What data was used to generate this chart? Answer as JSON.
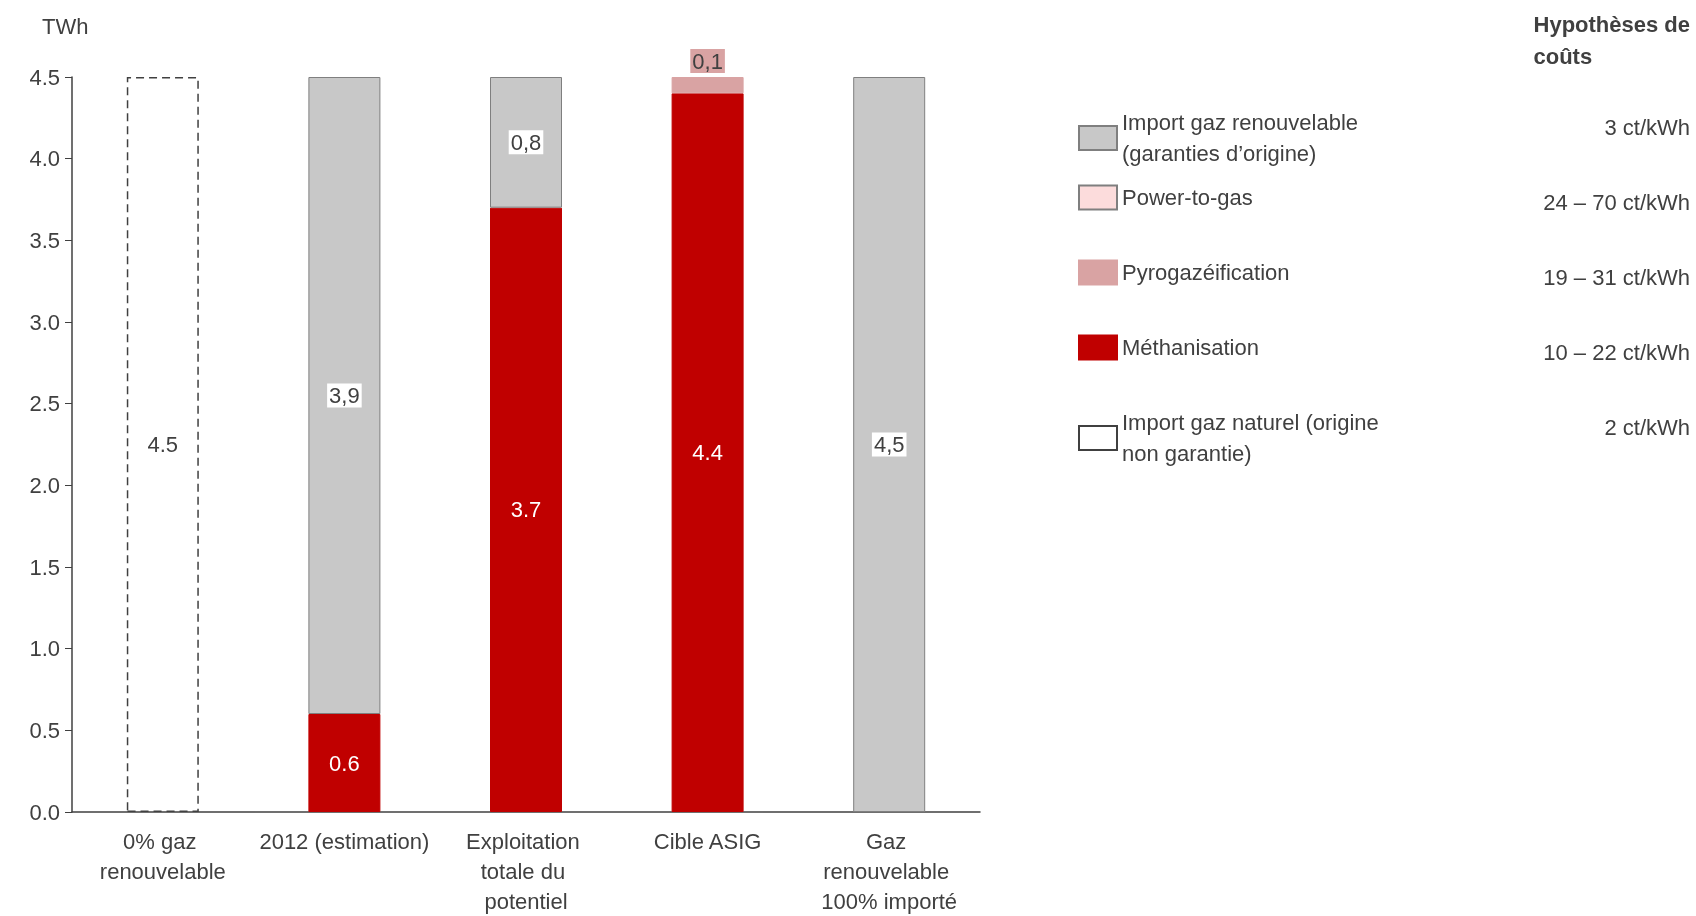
{
  "chart_data": {
    "type": "bar",
    "stacked": true,
    "ylabel": "TWh",
    "categories": [
      "0% gaz renouvelable",
      "2012 (estimation)",
      "Exploitation totale du potentiel",
      "Cible ASIG",
      "Gaz renouvelable 100% importé"
    ],
    "series": [
      {
        "name": "Import gaz naturel (origine non garantie)",
        "color": "#404040",
        "line_style": "dashed",
        "values": [
          4.5,
          null,
          null,
          null,
          null
        ],
        "value_labels": [
          "4.5",
          null,
          null,
          null,
          null
        ]
      },
      {
        "name": "Méthanisation",
        "color": "#c00000",
        "values": [
          null,
          0.6,
          3.7,
          4.4,
          null
        ],
        "value_labels": [
          null,
          "0.6",
          "3.7",
          "4.4",
          null
        ]
      },
      {
        "name": "Pyrogazéification",
        "color": "#d9a3a3",
        "values": [
          null,
          null,
          null,
          0.1,
          null
        ],
        "value_labels": [
          null,
          null,
          null,
          "0,1",
          null
        ]
      },
      {
        "name": "Power-to-gas",
        "color": "#fcdcdc",
        "values": [
          null,
          null,
          null,
          null,
          null
        ]
      },
      {
        "name": "Import gaz renouvelable (garanties d’origine)",
        "color": "#c8c8c8",
        "values": [
          null,
          3.9,
          0.8,
          null,
          4.5
        ],
        "value_labels": [
          null,
          "3,9",
          "0,8",
          null,
          "4,5"
        ]
      }
    ],
    "ylim": [
      0,
      4.5
    ],
    "yticks": [
      {
        "value": 0,
        "label": "0.0"
      },
      0.5,
      {
        "value": 1,
        "label": "1.0"
      },
      1.5,
      {
        "value": 2,
        "label": "2.0"
      },
      2.5,
      {
        "value": 3,
        "label": "3.0"
      },
      3.5,
      {
        "value": 4,
        "label": "4.0"
      },
      4.5
    ],
    "grid": false,
    "legend": "right",
    "annotations": [
      "Hypothèses de coûts",
      "3 ct/kWh",
      "24 – 70 ct/kWh",
      "19 – 31 ct/kWh",
      "10 – 22 ct/kWh",
      "2 ct/kWh"
    ]
  }
}
